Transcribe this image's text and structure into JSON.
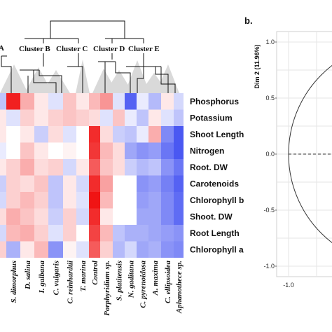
{
  "chart_data": [
    {
      "type": "heatmap",
      "rows": [
        "Phosphorus",
        "Potassium",
        "Shoot Length",
        "Nitrogen",
        "Root. DW",
        "Carotenoids",
        "Chlorophyll b",
        "Shoot. DW",
        "Root Length",
        "Chlorophyll a"
      ],
      "columns": [
        "S. dimorphus",
        "D. salina",
        "I. galbana",
        "C. vulgaris",
        "C. reinhardtii",
        "T. marina",
        "Control",
        "Porphyridium sp.",
        "S. platitensis",
        "N. gaditana",
        "C. pyrenoidosa",
        "A. maxima",
        "C. ellipsoidea",
        "Aphanothece sp."
      ],
      "clusters": [
        "Cluster B",
        "Cluster C",
        "Cluster D",
        "Cluster E"
      ],
      "color_scale": {
        "low": "#2a3bf0",
        "mid": "#ffffff",
        "high": "#f01414"
      },
      "values": [
        [
          0.95,
          0.35,
          0.1,
          -0.15,
          0.25,
          0.1,
          0.3,
          0.45,
          -0.15,
          -0.8,
          -0.1,
          -0.35,
          0.1,
          -0.2
        ],
        [
          -0.15,
          0.2,
          0.1,
          0.2,
          0.25,
          0.2,
          0.15,
          -0.15,
          0.25,
          -0.1,
          -0.3,
          0.1,
          -0.15,
          -0.3
        ],
        [
          0.0,
          0.1,
          -0.25,
          0.15,
          -0.15,
          0.0,
          0.9,
          0.15,
          -0.25,
          -0.3,
          -0.1,
          0.35,
          -0.6,
          -0.85
        ],
        [
          0.0,
          0.25,
          0.1,
          0.0,
          0.05,
          0.0,
          0.85,
          0.3,
          0.15,
          -0.45,
          -0.55,
          -0.5,
          -0.7,
          -0.85
        ],
        [
          0.2,
          0.35,
          0.15,
          0.2,
          -0.2,
          0.1,
          0.7,
          0.25,
          0.15,
          -0.25,
          -0.35,
          -0.3,
          -0.55,
          -0.7
        ],
        [
          0.2,
          0.15,
          0.25,
          -0.3,
          0.1,
          -0.2,
          0.9,
          0.4,
          0.0,
          0.0,
          -0.55,
          -0.5,
          -0.65,
          -0.8
        ],
        [
          0.2,
          0.3,
          0.2,
          -0.3,
          0.1,
          -0.15,
          1.0,
          0.3,
          0.0,
          0.0,
          -0.5,
          -0.45,
          -0.6,
          -0.75
        ],
        [
          0.35,
          0.25,
          0.15,
          -0.25,
          0.2,
          -0.2,
          0.9,
          0.1,
          0.0,
          0.0,
          -0.45,
          -0.45,
          -0.6,
          -0.75
        ],
        [
          0.3,
          0.35,
          0.2,
          -0.15,
          0.2,
          0.0,
          0.8,
          0.3,
          -0.3,
          -0.4,
          -0.4,
          -0.45,
          -0.5,
          -0.55
        ],
        [
          -0.4,
          0.1,
          0.3,
          -0.55,
          0.05,
          -0.15,
          0.7,
          0.2,
          -0.35,
          -0.2,
          -0.45,
          -0.4,
          -0.55,
          -0.6
        ]
      ]
    },
    {
      "type": "scatter",
      "panel_label": "b.",
      "ylabel": "Dim 2 (11.96%)",
      "yticks": [
        "1.0",
        "0.5",
        "0.0",
        "-0.5",
        "-1.0"
      ],
      "xticks": [
        "-1.0"
      ],
      "xlim": [
        -1.0,
        1.0
      ],
      "ylim": [
        -1.0,
        1.0
      ],
      "grid": true,
      "unit_circle": true
    }
  ]
}
